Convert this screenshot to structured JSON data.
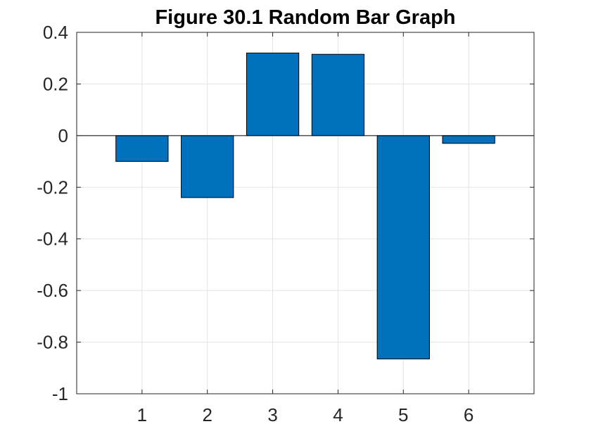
{
  "chart_data": {
    "type": "bar",
    "title": "Figure 30.1 Random Bar Graph",
    "xlabel": "",
    "ylabel": "",
    "categories": [
      "1",
      "2",
      "3",
      "4",
      "5",
      "6"
    ],
    "values": [
      -0.1,
      -0.24,
      0.32,
      0.315,
      -0.865,
      -0.03
    ],
    "ylim": [
      -1,
      0.4
    ],
    "xlim": [
      0,
      7
    ],
    "yticks": [
      0.4,
      0.2,
      0,
      -0.2,
      -0.4,
      -0.6,
      -0.8,
      -1
    ],
    "ytick_labels": [
      "0.4",
      "0.2",
      "0",
      "-0.2",
      "-0.4",
      "-0.6",
      "-0.8",
      "-1"
    ],
    "grid": true,
    "bar_color": "#0072BD",
    "edge_color": "#000000"
  }
}
